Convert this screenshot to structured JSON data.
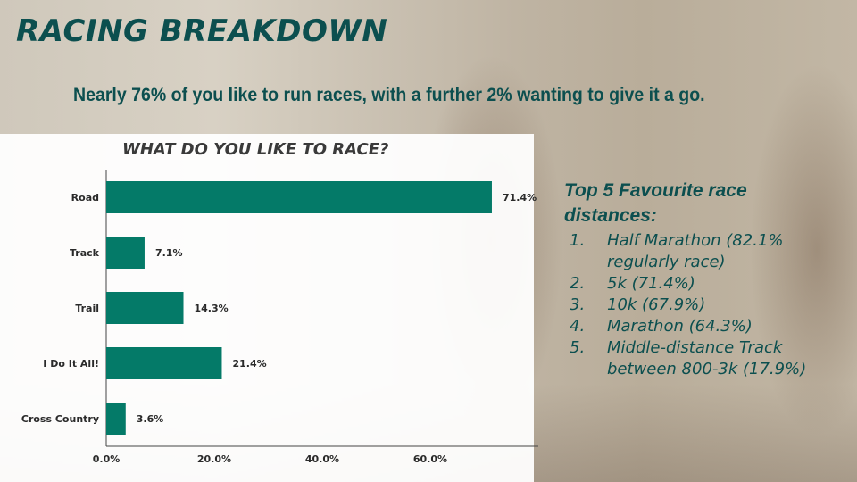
{
  "slide": {
    "title": "RACING BREAKDOWN",
    "subtitle": "Nearly 76% of you like to run races, with a further 2% wanting to give it a go."
  },
  "chart_data": {
    "type": "bar",
    "orientation": "horizontal",
    "title": "WHAT DO YOU LIKE TO RACE?",
    "categories": [
      "Road",
      "Track",
      "Trail",
      "I Do It All!",
      "Cross Country"
    ],
    "values": [
      71.4,
      7.1,
      14.3,
      21.4,
      3.6
    ],
    "value_labels": [
      "71.4%",
      "7.1%",
      "14.3%",
      "21.4%",
      "3.6%"
    ],
    "xlim": [
      0,
      80
    ],
    "ticks": [
      0,
      20,
      40,
      60
    ],
    "tick_labels": [
      "0.0%",
      "20.0%",
      "40.0%",
      "60.0%"
    ],
    "bar_color": "#047a68",
    "grid": false
  },
  "side": {
    "heading": "Top 5 Favourite race distances:",
    "items": [
      {
        "num": "1.",
        "text": "Half Marathon (82.1% regularly race)"
      },
      {
        "num": "2.",
        "text": "5k (71.4%)"
      },
      {
        "num": "3.",
        "text": "10k (67.9%)"
      },
      {
        "num": "4.",
        "text": "Marathon (64.3%)"
      },
      {
        "num": "5.",
        "text": "Middle-distance Track between 800-3k (17.9%)"
      }
    ]
  }
}
